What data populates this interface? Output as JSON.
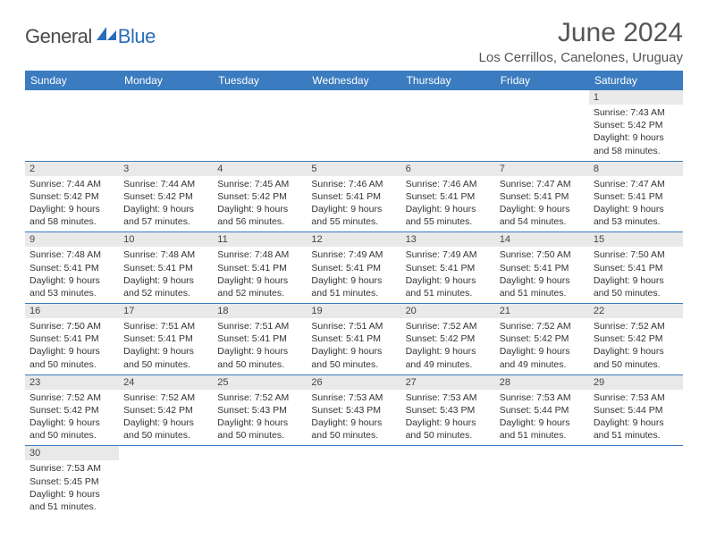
{
  "logo": {
    "text1": "General",
    "text2": "Blue"
  },
  "title": "June 2024",
  "location": "Los Cerrillos, Canelones, Uruguay",
  "colors": {
    "header_bg": "#3b7bbf",
    "header_fg": "#ffffff",
    "daynum_bg": "#e9e9e9",
    "border": "#3b7bbf",
    "logo_blue": "#2a6db8",
    "logo_gray": "#4a4a4a"
  },
  "day_names": [
    "Sunday",
    "Monday",
    "Tuesday",
    "Wednesday",
    "Thursday",
    "Friday",
    "Saturday"
  ],
  "weeks": [
    [
      null,
      null,
      null,
      null,
      null,
      null,
      {
        "n": "1",
        "sr": "Sunrise: 7:43 AM",
        "ss": "Sunset: 5:42 PM",
        "d1": "Daylight: 9 hours",
        "d2": "and 58 minutes."
      }
    ],
    [
      {
        "n": "2",
        "sr": "Sunrise: 7:44 AM",
        "ss": "Sunset: 5:42 PM",
        "d1": "Daylight: 9 hours",
        "d2": "and 58 minutes."
      },
      {
        "n": "3",
        "sr": "Sunrise: 7:44 AM",
        "ss": "Sunset: 5:42 PM",
        "d1": "Daylight: 9 hours",
        "d2": "and 57 minutes."
      },
      {
        "n": "4",
        "sr": "Sunrise: 7:45 AM",
        "ss": "Sunset: 5:42 PM",
        "d1": "Daylight: 9 hours",
        "d2": "and 56 minutes."
      },
      {
        "n": "5",
        "sr": "Sunrise: 7:46 AM",
        "ss": "Sunset: 5:41 PM",
        "d1": "Daylight: 9 hours",
        "d2": "and 55 minutes."
      },
      {
        "n": "6",
        "sr": "Sunrise: 7:46 AM",
        "ss": "Sunset: 5:41 PM",
        "d1": "Daylight: 9 hours",
        "d2": "and 55 minutes."
      },
      {
        "n": "7",
        "sr": "Sunrise: 7:47 AM",
        "ss": "Sunset: 5:41 PM",
        "d1": "Daylight: 9 hours",
        "d2": "and 54 minutes."
      },
      {
        "n": "8",
        "sr": "Sunrise: 7:47 AM",
        "ss": "Sunset: 5:41 PM",
        "d1": "Daylight: 9 hours",
        "d2": "and 53 minutes."
      }
    ],
    [
      {
        "n": "9",
        "sr": "Sunrise: 7:48 AM",
        "ss": "Sunset: 5:41 PM",
        "d1": "Daylight: 9 hours",
        "d2": "and 53 minutes."
      },
      {
        "n": "10",
        "sr": "Sunrise: 7:48 AM",
        "ss": "Sunset: 5:41 PM",
        "d1": "Daylight: 9 hours",
        "d2": "and 52 minutes."
      },
      {
        "n": "11",
        "sr": "Sunrise: 7:48 AM",
        "ss": "Sunset: 5:41 PM",
        "d1": "Daylight: 9 hours",
        "d2": "and 52 minutes."
      },
      {
        "n": "12",
        "sr": "Sunrise: 7:49 AM",
        "ss": "Sunset: 5:41 PM",
        "d1": "Daylight: 9 hours",
        "d2": "and 51 minutes."
      },
      {
        "n": "13",
        "sr": "Sunrise: 7:49 AM",
        "ss": "Sunset: 5:41 PM",
        "d1": "Daylight: 9 hours",
        "d2": "and 51 minutes."
      },
      {
        "n": "14",
        "sr": "Sunrise: 7:50 AM",
        "ss": "Sunset: 5:41 PM",
        "d1": "Daylight: 9 hours",
        "d2": "and 51 minutes."
      },
      {
        "n": "15",
        "sr": "Sunrise: 7:50 AM",
        "ss": "Sunset: 5:41 PM",
        "d1": "Daylight: 9 hours",
        "d2": "and 50 minutes."
      }
    ],
    [
      {
        "n": "16",
        "sr": "Sunrise: 7:50 AM",
        "ss": "Sunset: 5:41 PM",
        "d1": "Daylight: 9 hours",
        "d2": "and 50 minutes."
      },
      {
        "n": "17",
        "sr": "Sunrise: 7:51 AM",
        "ss": "Sunset: 5:41 PM",
        "d1": "Daylight: 9 hours",
        "d2": "and 50 minutes."
      },
      {
        "n": "18",
        "sr": "Sunrise: 7:51 AM",
        "ss": "Sunset: 5:41 PM",
        "d1": "Daylight: 9 hours",
        "d2": "and 50 minutes."
      },
      {
        "n": "19",
        "sr": "Sunrise: 7:51 AM",
        "ss": "Sunset: 5:41 PM",
        "d1": "Daylight: 9 hours",
        "d2": "and 50 minutes."
      },
      {
        "n": "20",
        "sr": "Sunrise: 7:52 AM",
        "ss": "Sunset: 5:42 PM",
        "d1": "Daylight: 9 hours",
        "d2": "and 49 minutes."
      },
      {
        "n": "21",
        "sr": "Sunrise: 7:52 AM",
        "ss": "Sunset: 5:42 PM",
        "d1": "Daylight: 9 hours",
        "d2": "and 49 minutes."
      },
      {
        "n": "22",
        "sr": "Sunrise: 7:52 AM",
        "ss": "Sunset: 5:42 PM",
        "d1": "Daylight: 9 hours",
        "d2": "and 50 minutes."
      }
    ],
    [
      {
        "n": "23",
        "sr": "Sunrise: 7:52 AM",
        "ss": "Sunset: 5:42 PM",
        "d1": "Daylight: 9 hours",
        "d2": "and 50 minutes."
      },
      {
        "n": "24",
        "sr": "Sunrise: 7:52 AM",
        "ss": "Sunset: 5:42 PM",
        "d1": "Daylight: 9 hours",
        "d2": "and 50 minutes."
      },
      {
        "n": "25",
        "sr": "Sunrise: 7:52 AM",
        "ss": "Sunset: 5:43 PM",
        "d1": "Daylight: 9 hours",
        "d2": "and 50 minutes."
      },
      {
        "n": "26",
        "sr": "Sunrise: 7:53 AM",
        "ss": "Sunset: 5:43 PM",
        "d1": "Daylight: 9 hours",
        "d2": "and 50 minutes."
      },
      {
        "n": "27",
        "sr": "Sunrise: 7:53 AM",
        "ss": "Sunset: 5:43 PM",
        "d1": "Daylight: 9 hours",
        "d2": "and 50 minutes."
      },
      {
        "n": "28",
        "sr": "Sunrise: 7:53 AM",
        "ss": "Sunset: 5:44 PM",
        "d1": "Daylight: 9 hours",
        "d2": "and 51 minutes."
      },
      {
        "n": "29",
        "sr": "Sunrise: 7:53 AM",
        "ss": "Sunset: 5:44 PM",
        "d1": "Daylight: 9 hours",
        "d2": "and 51 minutes."
      }
    ],
    [
      {
        "n": "30",
        "sr": "Sunrise: 7:53 AM",
        "ss": "Sunset: 5:45 PM",
        "d1": "Daylight: 9 hours",
        "d2": "and 51 minutes."
      },
      null,
      null,
      null,
      null,
      null,
      null
    ]
  ]
}
